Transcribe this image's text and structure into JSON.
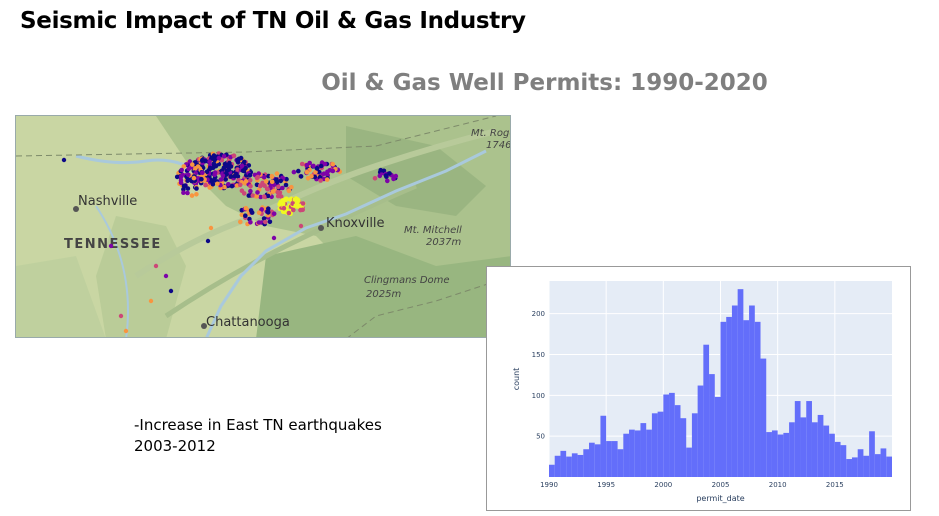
{
  "slide": {
    "title": "Seismic Impact of TN Oil & Gas Industry",
    "subtitle": "Oil & Gas Well Permits: 1990-2020",
    "notes_line1": "-Increase in East TN earthquakes",
    "notes_line2": "2003-2012"
  },
  "map": {
    "labels": {
      "state": "TENNESSEE",
      "nashville": "Nashville",
      "knoxville": "Knoxville",
      "chattanooga": "Chattanooga",
      "mt_rogers_1": "Mt. Roge",
      "mt_rogers_2": "1746",
      "mt_mitchell_1": "Mt. Mitchell",
      "mt_mitchell_2": "2037m",
      "clingmans_1": "Clingmans Dome",
      "clingmans_2": "2025m"
    },
    "colors": {
      "land": "#c9d6a3",
      "forest": "#9fbb86",
      "water": "#a9c9dc",
      "point_dark": "#0d0887",
      "point_purple": "#7e03a8",
      "point_magenta": "#cc4778",
      "point_orange": "#f89540",
      "point_yellow": "#f0f921"
    }
  },
  "chart_data": {
    "type": "bar",
    "xlabel": "permit_date",
    "ylabel": "count",
    "xlim": [
      1990,
      2020
    ],
    "ylim": [
      0,
      240
    ],
    "xticks": [
      1990,
      1995,
      2000,
      2005,
      2010,
      2015
    ],
    "yticks": [
      50,
      100,
      150,
      200
    ],
    "bin_width_years": 0.5,
    "bin_starts": [
      1990,
      1990.5,
      1991,
      1991.5,
      1992,
      1992.5,
      1993,
      1993.5,
      1994,
      1994.5,
      1995,
      1995.5,
      1996,
      1996.5,
      1997,
      1997.5,
      1998,
      1998.5,
      1999,
      1999.5,
      2000,
      2000.5,
      2001,
      2001.5,
      2002,
      2002.5,
      2003,
      2003.5,
      2004,
      2004.5,
      2005,
      2005.5,
      2006,
      2006.5,
      2007,
      2007.5,
      2008,
      2008.5,
      2009,
      2009.5,
      2010,
      2010.5,
      2011,
      2011.5,
      2012,
      2012.5,
      2013,
      2013.5,
      2014,
      2014.5,
      2015,
      2015.5,
      2016,
      2016.5,
      2017,
      2017.5,
      2018,
      2018.5,
      2019,
      2019.5
    ],
    "values": [
      15,
      26,
      32,
      25,
      29,
      27,
      34,
      42,
      40,
      75,
      44,
      44,
      34,
      53,
      58,
      57,
      66,
      58,
      78,
      80,
      101,
      103,
      88,
      72,
      36,
      78,
      112,
      162,
      126,
      98,
      190,
      196,
      210,
      230,
      192,
      210,
      190,
      145,
      55,
      57,
      52,
      54,
      67,
      93,
      73,
      93,
      67,
      76,
      63,
      53,
      43,
      39,
      22,
      24,
      34,
      26,
      56,
      28,
      35,
      25
    ],
    "bar_color": "#636efa",
    "plot_bg": "#e5ecf6"
  }
}
